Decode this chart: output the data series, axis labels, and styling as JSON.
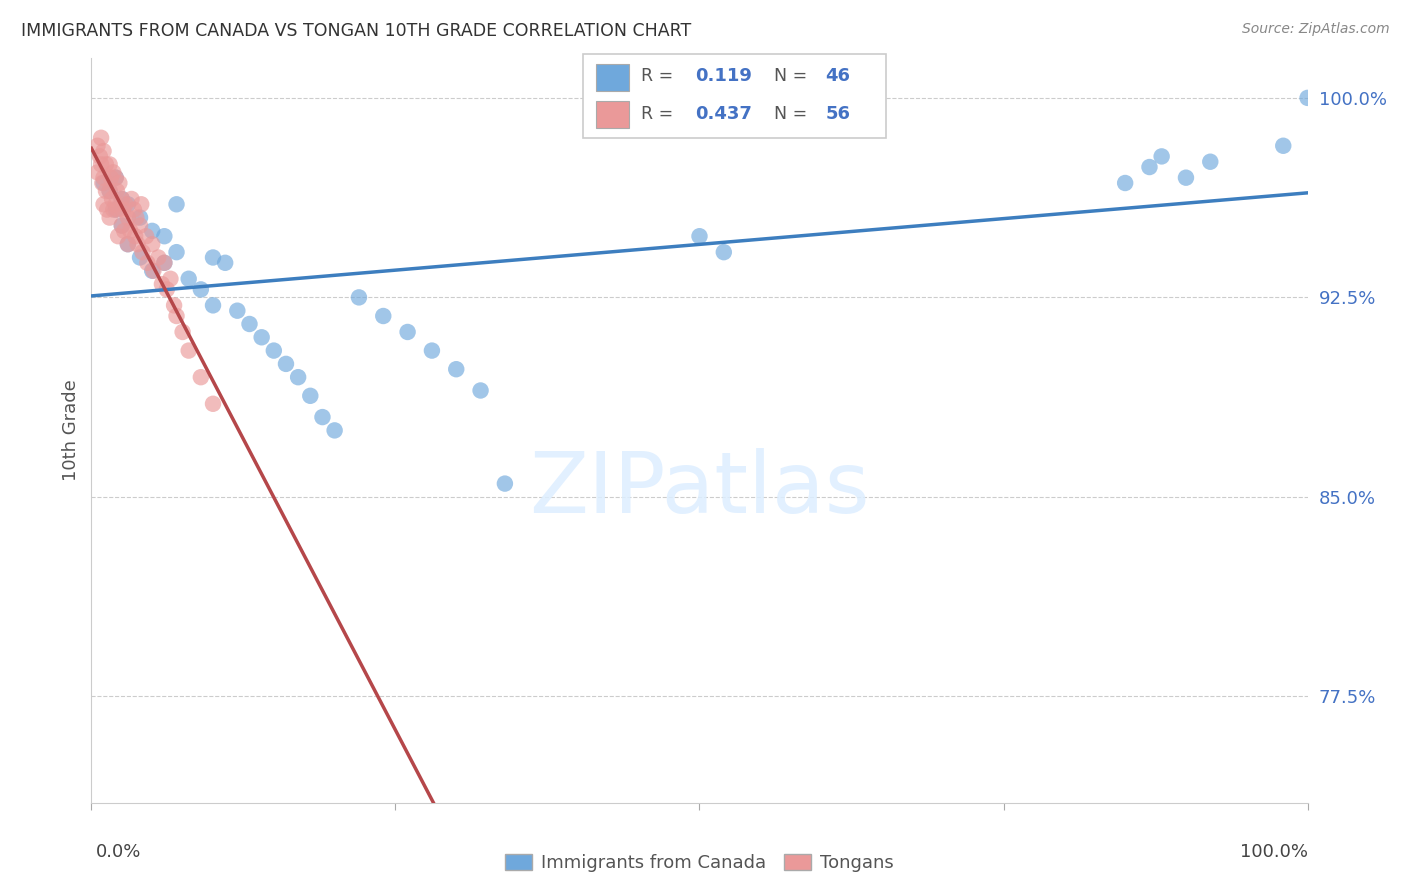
{
  "title": "IMMIGRANTS FROM CANADA VS TONGAN 10TH GRADE CORRELATION CHART",
  "source": "Source: ZipAtlas.com",
  "ylabel": "10th Grade",
  "yticks": [
    0.775,
    0.85,
    0.925,
    1.0
  ],
  "ytick_labels": [
    "77.5%",
    "85.0%",
    "92.5%",
    "100.0%"
  ],
  "xlim": [
    0.0,
    1.0
  ],
  "ylim": [
    0.735,
    1.015
  ],
  "blue_color": "#6fa8dc",
  "pink_color": "#ea9999",
  "blue_line_color": "#3d7ebf",
  "pink_line_color": "#b5474a",
  "legend_label_blue": "Immigrants from Canada",
  "legend_label_pink": "Tongans",
  "blue_x": [
    0.01,
    0.015,
    0.02,
    0.02,
    0.025,
    0.025,
    0.03,
    0.03,
    0.04,
    0.04,
    0.05,
    0.05,
    0.06,
    0.06,
    0.07,
    0.07,
    0.08,
    0.09,
    0.1,
    0.1,
    0.11,
    0.12,
    0.13,
    0.14,
    0.15,
    0.16,
    0.17,
    0.18,
    0.19,
    0.2,
    0.22,
    0.24,
    0.26,
    0.28,
    0.3,
    0.32,
    0.34,
    0.5,
    0.52,
    0.85,
    0.87,
    0.88,
    0.9,
    0.92,
    0.98,
    1.0
  ],
  "blue_y": [
    0.968,
    0.965,
    0.958,
    0.97,
    0.962,
    0.952,
    0.96,
    0.945,
    0.955,
    0.94,
    0.95,
    0.935,
    0.948,
    0.938,
    0.96,
    0.942,
    0.932,
    0.928,
    0.94,
    0.922,
    0.938,
    0.92,
    0.915,
    0.91,
    0.905,
    0.9,
    0.895,
    0.888,
    0.88,
    0.875,
    0.925,
    0.918,
    0.912,
    0.905,
    0.898,
    0.89,
    0.855,
    0.948,
    0.942,
    0.968,
    0.974,
    0.978,
    0.97,
    0.976,
    0.982,
    1.0
  ],
  "pink_x": [
    0.005,
    0.005,
    0.007,
    0.008,
    0.008,
    0.009,
    0.01,
    0.01,
    0.01,
    0.012,
    0.012,
    0.013,
    0.015,
    0.015,
    0.015,
    0.016,
    0.017,
    0.018,
    0.018,
    0.02,
    0.02,
    0.021,
    0.022,
    0.022,
    0.023,
    0.025,
    0.025,
    0.026,
    0.027,
    0.028,
    0.03,
    0.03,
    0.032,
    0.033,
    0.035,
    0.036,
    0.037,
    0.038,
    0.04,
    0.041,
    0.042,
    0.045,
    0.046,
    0.05,
    0.051,
    0.055,
    0.058,
    0.06,
    0.062,
    0.065,
    0.068,
    0.07,
    0.075,
    0.08,
    0.09,
    0.1
  ],
  "pink_y": [
    0.982,
    0.972,
    0.978,
    0.985,
    0.975,
    0.968,
    0.98,
    0.97,
    0.96,
    0.975,
    0.965,
    0.958,
    0.975,
    0.965,
    0.955,
    0.97,
    0.962,
    0.972,
    0.958,
    0.97,
    0.96,
    0.965,
    0.958,
    0.948,
    0.968,
    0.962,
    0.952,
    0.958,
    0.95,
    0.96,
    0.955,
    0.945,
    0.95,
    0.962,
    0.958,
    0.948,
    0.955,
    0.945,
    0.952,
    0.96,
    0.942,
    0.948,
    0.938,
    0.945,
    0.935,
    0.94,
    0.93,
    0.938,
    0.928,
    0.932,
    0.922,
    0.918,
    0.912,
    0.905,
    0.895,
    0.885
  ]
}
